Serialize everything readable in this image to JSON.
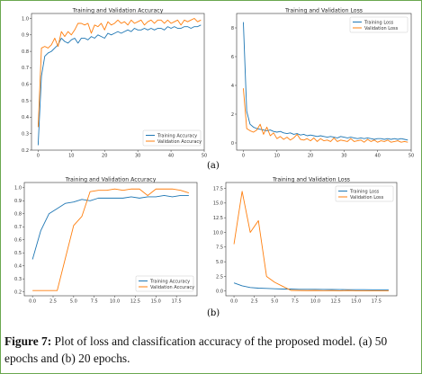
{
  "caption": {
    "figure_label": "Figure 7:",
    "text": " Plot of loss and classification accuracy of the proposed model. (a) 50 epochs and (b) 20 epochs."
  },
  "panel_labels": {
    "a": "(a)",
    "b": "(b)"
  },
  "colors": {
    "train": "#1f77b4",
    "val": "#ff7f0e"
  },
  "chart_data": [
    {
      "type": "line",
      "title": "Training and Validation Accuracy",
      "xlabel": "",
      "ylabel": "",
      "xlim": [
        -2,
        50
      ],
      "ylim": [
        0.2,
        1.03
      ],
      "xticks": [
        0,
        10,
        20,
        30,
        40,
        50
      ],
      "yticks": [
        0.2,
        0.3,
        0.4,
        0.5,
        0.6,
        0.7,
        0.8,
        0.9,
        1.0
      ],
      "ytick_labels": [
        "0.2",
        "0.3",
        "0.4",
        "0.5",
        "0.6",
        "0.7",
        "0.8",
        "0.9",
        "1.0"
      ],
      "legend": "bottom-right",
      "grid": false,
      "series": [
        {
          "name": "Training Accuracy",
          "color": "#1f77b4",
          "x": [
            0,
            1,
            2,
            3,
            4,
            5,
            6,
            7,
            8,
            9,
            10,
            11,
            12,
            13,
            14,
            15,
            16,
            17,
            18,
            19,
            20,
            21,
            22,
            23,
            24,
            25,
            26,
            27,
            28,
            29,
            30,
            31,
            32,
            33,
            34,
            35,
            36,
            37,
            38,
            39,
            40,
            41,
            42,
            43,
            44,
            45,
            46,
            47,
            48,
            49
          ],
          "y": [
            0.23,
            0.65,
            0.77,
            0.79,
            0.8,
            0.82,
            0.84,
            0.88,
            0.86,
            0.85,
            0.87,
            0.88,
            0.85,
            0.88,
            0.88,
            0.87,
            0.89,
            0.88,
            0.9,
            0.89,
            0.88,
            0.91,
            0.9,
            0.91,
            0.92,
            0.91,
            0.92,
            0.93,
            0.92,
            0.94,
            0.93,
            0.93,
            0.94,
            0.93,
            0.94,
            0.93,
            0.94,
            0.94,
            0.93,
            0.95,
            0.94,
            0.95,
            0.94,
            0.94,
            0.95,
            0.95,
            0.94,
            0.95,
            0.95,
            0.96
          ]
        },
        {
          "name": "Validation Accuracy",
          "color": "#ff7f0e",
          "x": [
            0,
            1,
            2,
            3,
            4,
            5,
            6,
            7,
            8,
            9,
            10,
            11,
            12,
            13,
            14,
            15,
            16,
            17,
            18,
            19,
            20,
            21,
            22,
            23,
            24,
            25,
            26,
            27,
            28,
            29,
            30,
            31,
            32,
            33,
            34,
            35,
            36,
            37,
            38,
            39,
            40,
            41,
            42,
            43,
            44,
            45,
            46,
            47,
            48,
            49
          ],
          "y": [
            0.34,
            0.82,
            0.83,
            0.82,
            0.84,
            0.88,
            0.83,
            0.92,
            0.89,
            0.92,
            0.9,
            0.93,
            0.97,
            0.97,
            0.96,
            0.97,
            0.91,
            0.96,
            0.95,
            0.97,
            0.93,
            0.98,
            0.96,
            0.97,
            0.99,
            0.97,
            0.98,
            0.96,
            0.99,
            0.97,
            0.98,
            0.99,
            0.96,
            0.98,
            0.99,
            0.97,
            0.99,
            0.99,
            0.97,
            0.99,
            0.97,
            0.98,
            0.99,
            0.96,
            0.99,
            0.98,
            0.99,
            1.0,
            0.98,
            0.99
          ]
        }
      ]
    },
    {
      "type": "line",
      "title": "Training and Validation Loss",
      "xlabel": "",
      "ylabel": "",
      "xlim": [
        -2,
        50
      ],
      "ylim": [
        -0.5,
        9.0
      ],
      "xticks": [
        0,
        10,
        20,
        30,
        40,
        50
      ],
      "yticks": [
        0,
        2,
        4,
        6,
        8
      ],
      "ytick_labels": [
        "0",
        "2",
        "4",
        "6",
        "8"
      ],
      "legend": "top-right",
      "grid": false,
      "series": [
        {
          "name": "Training Loss",
          "color": "#1f77b4",
          "x": [
            0,
            1,
            2,
            3,
            4,
            5,
            6,
            7,
            8,
            9,
            10,
            11,
            12,
            13,
            14,
            15,
            16,
            17,
            18,
            19,
            20,
            21,
            22,
            23,
            24,
            25,
            26,
            27,
            28,
            29,
            30,
            31,
            32,
            33,
            34,
            35,
            36,
            37,
            38,
            39,
            40,
            41,
            42,
            43,
            44,
            45,
            46,
            47,
            48,
            49
          ],
          "y": [
            8.4,
            2.2,
            1.3,
            1.1,
            1.0,
            0.95,
            0.9,
            0.85,
            0.9,
            0.8,
            0.75,
            0.8,
            0.7,
            0.65,
            0.7,
            0.6,
            0.65,
            0.55,
            0.6,
            0.5,
            0.55,
            0.5,
            0.45,
            0.5,
            0.45,
            0.4,
            0.45,
            0.4,
            0.35,
            0.45,
            0.4,
            0.35,
            0.4,
            0.35,
            0.3,
            0.35,
            0.3,
            0.35,
            0.3,
            0.25,
            0.3,
            0.3,
            0.25,
            0.3,
            0.25,
            0.3,
            0.25,
            0.3,
            0.25,
            0.2
          ]
        },
        {
          "name": "Validation Loss",
          "color": "#ff7f0e",
          "x": [
            0,
            1,
            2,
            3,
            4,
            5,
            6,
            7,
            8,
            9,
            10,
            11,
            12,
            13,
            14,
            15,
            16,
            17,
            18,
            19,
            20,
            21,
            22,
            23,
            24,
            25,
            26,
            27,
            28,
            29,
            30,
            31,
            32,
            33,
            34,
            35,
            36,
            37,
            38,
            39,
            40,
            41,
            42,
            43,
            44,
            45,
            46,
            47,
            48,
            49
          ],
          "y": [
            3.8,
            1.0,
            0.85,
            0.75,
            0.9,
            1.3,
            0.6,
            1.1,
            0.5,
            0.7,
            0.3,
            0.45,
            0.25,
            0.4,
            0.2,
            0.35,
            0.6,
            0.25,
            0.2,
            0.3,
            0.15,
            0.35,
            0.1,
            0.3,
            0.15,
            0.2,
            0.1,
            0.35,
            0.1,
            0.2,
            0.15,
            0.1,
            0.3,
            0.1,
            0.15,
            0.2,
            0.05,
            0.25,
            0.1,
            0.2,
            0.05,
            0.15,
            0.1,
            0.2,
            0.05,
            0.1,
            0.15,
            0.05,
            0.1,
            0.05
          ]
        }
      ]
    },
    {
      "type": "line",
      "title": "Training and Validation Accuracy",
      "xlabel": "",
      "ylabel": "",
      "xlim": [
        -1,
        20
      ],
      "ylim": [
        0.17,
        1.04
      ],
      "xticks": [
        0,
        2.5,
        5,
        7.5,
        10,
        12.5,
        15,
        17.5
      ],
      "xtick_labels": [
        "0.0",
        "2.5",
        "5.0",
        "7.5",
        "10.0",
        "12.5",
        "15.0",
        "17.5"
      ],
      "yticks": [
        0.2,
        0.3,
        0.4,
        0.5,
        0.6,
        0.7,
        0.8,
        0.9,
        1.0
      ],
      "ytick_labels": [
        "0.2",
        "0.3",
        "0.4",
        "0.5",
        "0.6",
        "0.7",
        "0.8",
        "0.9",
        "1.0"
      ],
      "legend": "bottom-right",
      "grid": false,
      "series": [
        {
          "name": "Training Accuracy",
          "color": "#1f77b4",
          "x": [
            0,
            1,
            2,
            3,
            4,
            5,
            6,
            7,
            8,
            9,
            10,
            11,
            12,
            13,
            14,
            15,
            16,
            17,
            18,
            19
          ],
          "y": [
            0.45,
            0.67,
            0.8,
            0.84,
            0.88,
            0.89,
            0.91,
            0.9,
            0.92,
            0.92,
            0.92,
            0.92,
            0.93,
            0.92,
            0.93,
            0.93,
            0.94,
            0.93,
            0.94,
            0.94
          ]
        },
        {
          "name": "Validation Accuracy",
          "color": "#ff7f0e",
          "x": [
            0,
            1,
            2,
            3,
            4,
            5,
            6,
            7,
            8,
            9,
            10,
            11,
            12,
            13,
            14,
            15,
            16,
            17,
            18,
            19
          ],
          "y": [
            0.21,
            0.21,
            0.21,
            0.21,
            0.46,
            0.71,
            0.78,
            0.97,
            0.98,
            0.98,
            0.99,
            0.98,
            0.99,
            0.99,
            0.94,
            0.99,
            0.99,
            0.99,
            0.98,
            0.96
          ]
        }
      ]
    },
    {
      "type": "line",
      "title": "Training and Validation Loss",
      "xlabel": "",
      "ylabel": "",
      "xlim": [
        -1,
        20
      ],
      "ylim": [
        -0.8,
        18.5
      ],
      "xticks": [
        0,
        2.5,
        5,
        7.5,
        10,
        12.5,
        15,
        17.5
      ],
      "xtick_labels": [
        "0.0",
        "2.5",
        "5.0",
        "7.5",
        "10.0",
        "12.5",
        "15.0",
        "17.5"
      ],
      "yticks": [
        0,
        2.5,
        5,
        7.5,
        10,
        12.5,
        15,
        17.5
      ],
      "ytick_labels": [
        "0.0",
        "2.5",
        "5.0",
        "7.5",
        "10.0",
        "12.5",
        "15.0",
        "17.5"
      ],
      "legend": "top-right",
      "grid": false,
      "series": [
        {
          "name": "Training Loss",
          "color": "#1f77b4",
          "x": [
            0,
            1,
            2,
            3,
            4,
            5,
            6,
            7,
            8,
            9,
            10,
            11,
            12,
            13,
            14,
            15,
            16,
            17,
            18,
            19
          ],
          "y": [
            1.4,
            0.9,
            0.6,
            0.5,
            0.45,
            0.4,
            0.35,
            0.35,
            0.3,
            0.3,
            0.3,
            0.28,
            0.27,
            0.26,
            0.25,
            0.25,
            0.24,
            0.23,
            0.22,
            0.22
          ]
        },
        {
          "name": "Validation Loss",
          "color": "#ff7f0e",
          "x": [
            0,
            1,
            2,
            3,
            4,
            5,
            6,
            7,
            8,
            9,
            10,
            11,
            12,
            13,
            14,
            15,
            16,
            17,
            18,
            19
          ],
          "y": [
            8.0,
            17.0,
            10.0,
            12.0,
            2.5,
            1.5,
            0.8,
            0.12,
            0.1,
            0.08,
            0.1,
            0.07,
            0.08,
            0.06,
            0.1,
            0.05,
            0.05,
            0.04,
            0.06,
            0.05
          ]
        }
      ]
    }
  ]
}
